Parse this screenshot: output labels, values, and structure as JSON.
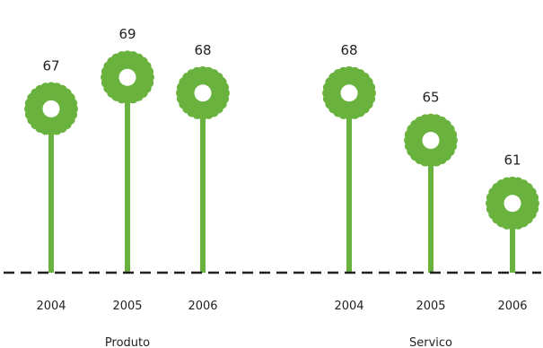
{
  "chart_data": {
    "type": "lollipop",
    "title": "",
    "groups": [
      "Produto",
      "Servico"
    ],
    "categories": [
      "2004",
      "2005",
      "2006"
    ],
    "series": [
      {
        "group": "Produto",
        "values": [
          67,
          69,
          68
        ]
      },
      {
        "group": "Servico",
        "values": [
          68,
          65,
          61
        ]
      }
    ],
    "xlabel": "",
    "ylabel": "",
    "ylim": [
      56.6,
      70.55
    ],
    "grid": false,
    "legend": "none"
  },
  "colors": {
    "accent": "#6ab23e",
    "baseline": "#231f20",
    "text": "#231f20"
  },
  "marker_icon": "flower-icon"
}
